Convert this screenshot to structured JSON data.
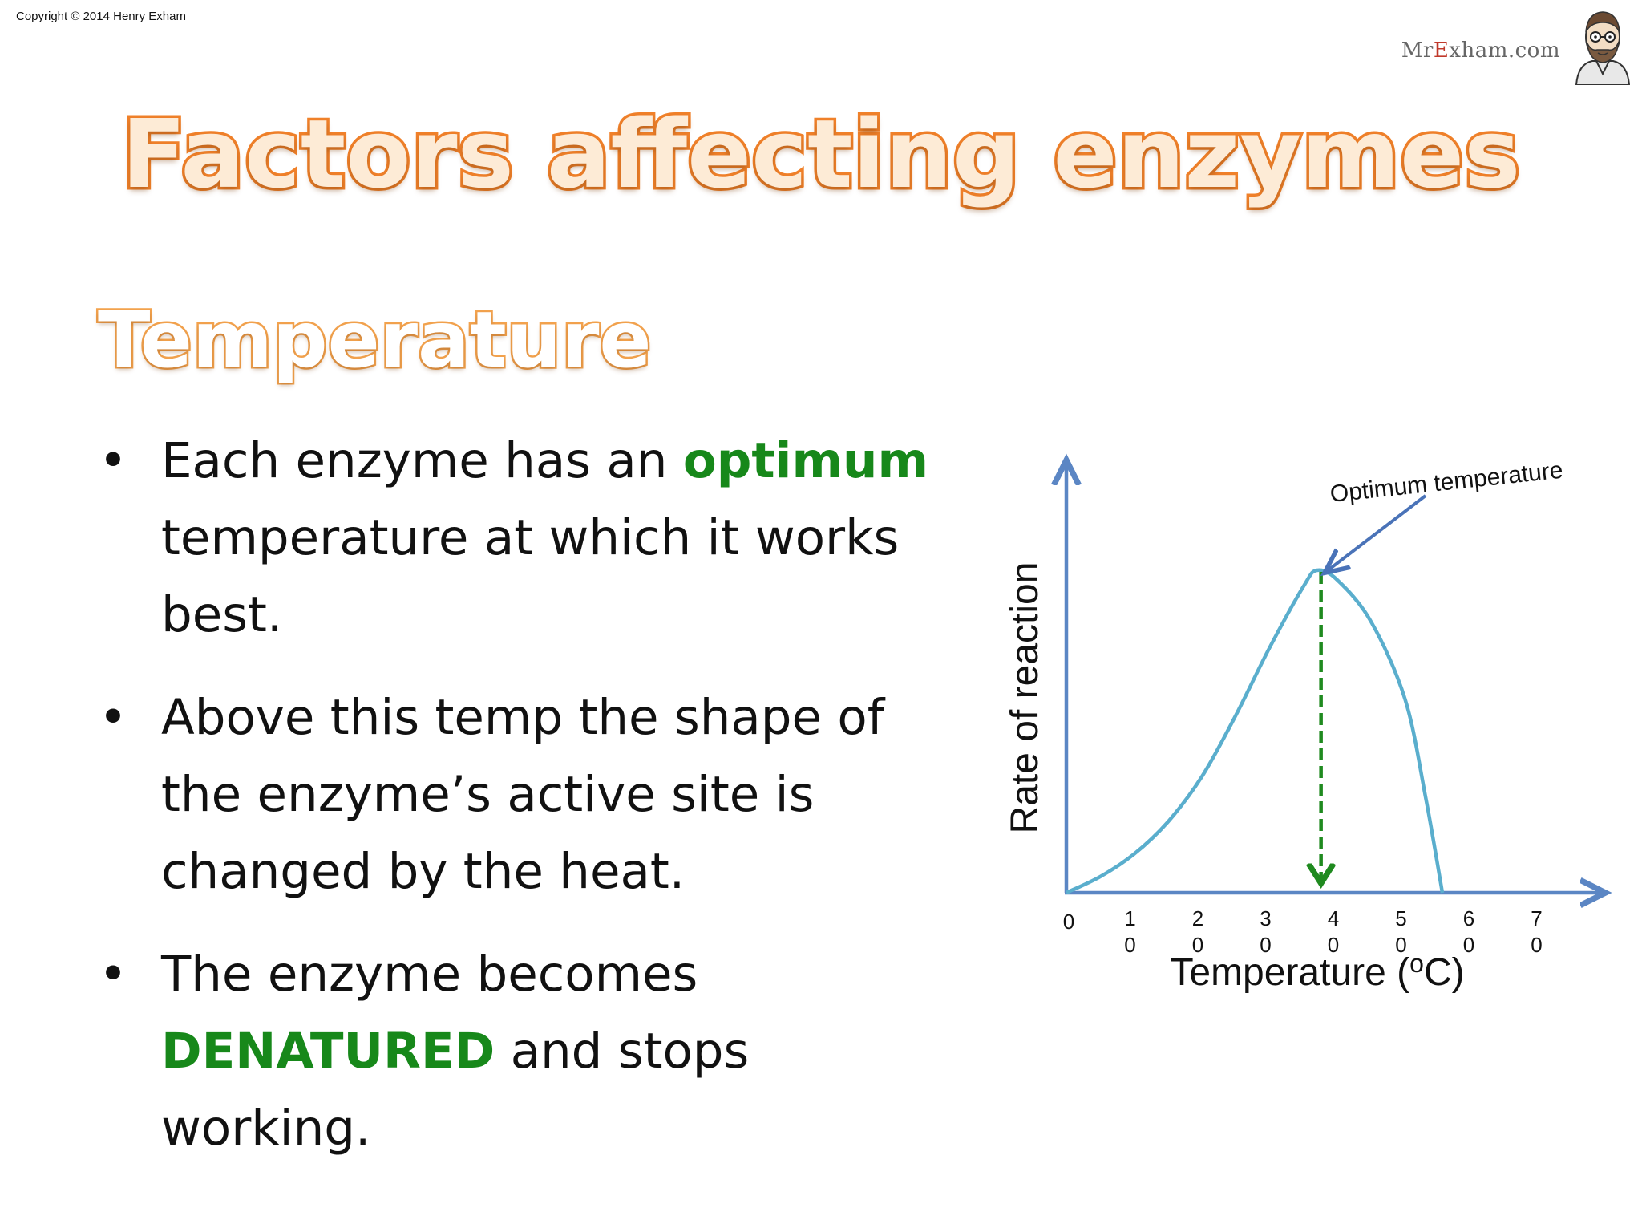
{
  "copyright": "Copyright © 2014 Henry Exham",
  "brand": {
    "prefix": "Mr",
    "accent": "E",
    "suffix": "xham.com"
  },
  "title": "Factors affecting enzymes",
  "subtitle": "Temperature",
  "bullets": [
    {
      "before": "Each enzyme has an ",
      "highlight": "optimum",
      "after": " temperature at which it works best."
    },
    {
      "before": "Above this temp the shape of the enzyme’s active site is changed by the heat.",
      "highlight": "",
      "after": ""
    },
    {
      "before": "The enzyme becomes ",
      "highlight": "DENATURED",
      "after": " and stops working."
    }
  ],
  "colors": {
    "title_fill": "#fdebd6",
    "title_outline": "#f0812a",
    "highlight": "#17881a",
    "axis": "#5b86c4",
    "curve": "#5aaecd",
    "optimum_line": "#1f8a1f"
  },
  "chart_data": {
    "type": "line",
    "title": "",
    "xlabel_prefix": "Temperature (",
    "xlabel_sup": "o",
    "xlabel_suffix": "C)",
    "ylabel": "Rate of reaction",
    "x_ticks": [
      {
        "top": "0",
        "bottom": ""
      },
      {
        "top": "1",
        "bottom": "0"
      },
      {
        "top": "2",
        "bottom": "0"
      },
      {
        "top": "3",
        "bottom": "0"
      },
      {
        "top": "4",
        "bottom": "0"
      },
      {
        "top": "5",
        "bottom": "0"
      },
      {
        "top": "6",
        "bottom": "0"
      },
      {
        "top": "7",
        "bottom": "0"
      }
    ],
    "xlim": [
      0,
      80
    ],
    "ylim": [
      0,
      1.2
    ],
    "series": [
      {
        "x": [
          0,
          5,
          10,
          15,
          20,
          25,
          30,
          35,
          37,
          40,
          45,
          50,
          53,
          55.5
        ],
        "values": [
          0,
          0.05,
          0.12,
          0.22,
          0.36,
          0.55,
          0.76,
          0.95,
          1.0,
          0.97,
          0.84,
          0.6,
          0.3,
          0
        ]
      }
    ],
    "annotation": {
      "text": "Optimum temperature",
      "x": 37,
      "y": 1.0
    },
    "grid": false,
    "legend": "none"
  }
}
